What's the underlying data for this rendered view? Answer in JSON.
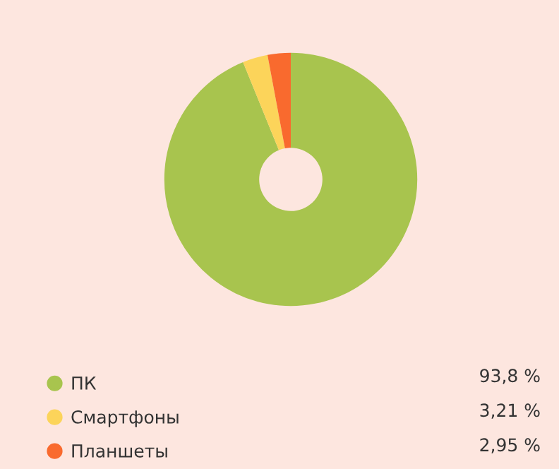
{
  "chart_data": {
    "type": "donut",
    "categories": [
      "ПК",
      "Смартфоны",
      "Планшеты"
    ],
    "values": [
      93.8,
      3.21,
      2.95
    ],
    "value_labels": [
      "93,8 %",
      "3,21 %",
      "2,95 %"
    ],
    "colors": [
      "#a8c44e",
      "#fcd45a",
      "#f96a2e"
    ],
    "legend": "bottom"
  }
}
